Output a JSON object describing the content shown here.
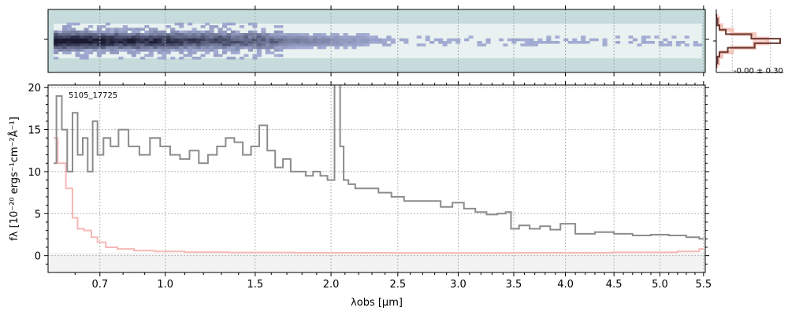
{
  "chart_data": [
    {
      "type": "heatmap",
      "name": "2D spectrum",
      "colormap": "bone-like (white → grey-blue → dark navy), light teal background",
      "x_axis": "wavelength (shared with 1D spectrum), ticks unlabeled",
      "y_ticks_labeled": false,
      "description_values": {
        "trace_row_center": 0.5,
        "bright_region_um": [
          0.6,
          2.1
        ]
      }
    },
    {
      "type": "line",
      "name": "spatial profile",
      "annotation": "-0.00 ± 0.30",
      "x": [
        -3,
        -2,
        -1.5,
        -1,
        -0.5,
        0,
        0.5,
        1,
        1.5,
        2,
        3
      ],
      "profile": [
        0.0,
        0.02,
        0.05,
        0.15,
        0.55,
        1.0,
        0.6,
        0.18,
        0.05,
        0.02,
        0.0
      ],
      "model": [
        0.0,
        0.03,
        0.08,
        0.25,
        0.6,
        0.8,
        0.6,
        0.25,
        0.08,
        0.03,
        0.0
      ],
      "colors": {
        "profile": "#6b3a32",
        "model": "#f4c7bd"
      }
    },
    {
      "type": "line",
      "title": "5105_17725",
      "xlabel": "λobs [μm]",
      "ylabel": "fλ [10⁻²⁰ ergs⁻¹cm⁻²Å⁻¹]",
      "xscale": "power-0.5 (square-root-like)",
      "xlim": [
        0.5,
        5.52
      ],
      "ylim": [
        -2,
        20.3
      ],
      "xticks": [
        0.7,
        1.0,
        1.5,
        2.0,
        2.5,
        3.0,
        3.5,
        4.0,
        4.5,
        5.0,
        5.5
      ],
      "xtick_labels": [
        "0.7",
        "1.0",
        "1.5",
        "2.0",
        "2.5",
        "3.0",
        "3.5",
        "4.0",
        "4.5",
        "5.0",
        "5.5"
      ],
      "yticks": [
        0,
        5,
        10,
        15,
        20
      ],
      "ytick_labels": [
        "0",
        "5",
        "10",
        "15",
        "20"
      ],
      "grid": true,
      "series": [
        {
          "role": "flux",
          "color": "#8c8c8c",
          "style": "steps",
          "x": [
            0.52,
            0.54,
            0.56,
            0.58,
            0.6,
            0.62,
            0.64,
            0.66,
            0.68,
            0.7,
            0.73,
            0.76,
            0.8,
            0.85,
            0.9,
            0.95,
            1.0,
            1.05,
            1.1,
            1.15,
            1.2,
            1.25,
            1.3,
            1.35,
            1.4,
            1.45,
            1.5,
            1.55,
            1.6,
            1.65,
            1.7,
            1.75,
            1.8,
            1.85,
            1.9,
            1.95,
            2.0,
            2.05,
            2.08,
            2.1,
            2.15,
            2.2,
            2.3,
            2.4,
            2.5,
            2.6,
            2.7,
            2.8,
            2.9,
            3.0,
            3.1,
            3.2,
            3.3,
            3.4,
            3.45,
            3.5,
            3.6,
            3.7,
            3.8,
            3.9,
            4.0,
            4.2,
            4.4,
            4.6,
            4.8,
            5.0,
            5.2,
            5.4,
            5.5
          ],
          "y": [
            11.0,
            19.0,
            15.0,
            10.0,
            17.0,
            12.0,
            14.0,
            10.0,
            16.0,
            12.0,
            14.0,
            13.0,
            15.0,
            13.0,
            12.0,
            14.0,
            13.0,
            12.0,
            11.5,
            12.5,
            11.0,
            12.0,
            13.0,
            14.0,
            13.5,
            12.0,
            13.0,
            15.5,
            12.5,
            10.5,
            11.5,
            10.0,
            10.0,
            9.5,
            10.0,
            9.5,
            9.0,
            21.0,
            13.0,
            9.0,
            8.5,
            8.0,
            8.0,
            7.5,
            7.0,
            6.5,
            6.5,
            6.5,
            5.8,
            6.3,
            5.6,
            5.2,
            4.9,
            5.0,
            5.2,
            3.2,
            3.6,
            3.2,
            3.5,
            3.1,
            3.8,
            2.6,
            2.8,
            2.6,
            2.4,
            2.5,
            2.4,
            2.2,
            2.0
          ]
        },
        {
          "role": "uncertainty",
          "color": "#f6b8b6",
          "style": "steps",
          "x": [
            0.52,
            0.55,
            0.58,
            0.6,
            0.62,
            0.65,
            0.68,
            0.7,
            0.75,
            0.8,
            0.9,
            1.0,
            1.2,
            1.5,
            2.0,
            3.0,
            4.0,
            5.0,
            5.4,
            5.5
          ],
          "y": [
            14.0,
            11.0,
            8.0,
            4.5,
            3.2,
            3.0,
            2.2,
            1.6,
            1.0,
            0.8,
            0.6,
            0.5,
            0.42,
            0.38,
            0.35,
            0.33,
            0.35,
            0.4,
            0.5,
            0.8
          ]
        }
      ]
    }
  ]
}
